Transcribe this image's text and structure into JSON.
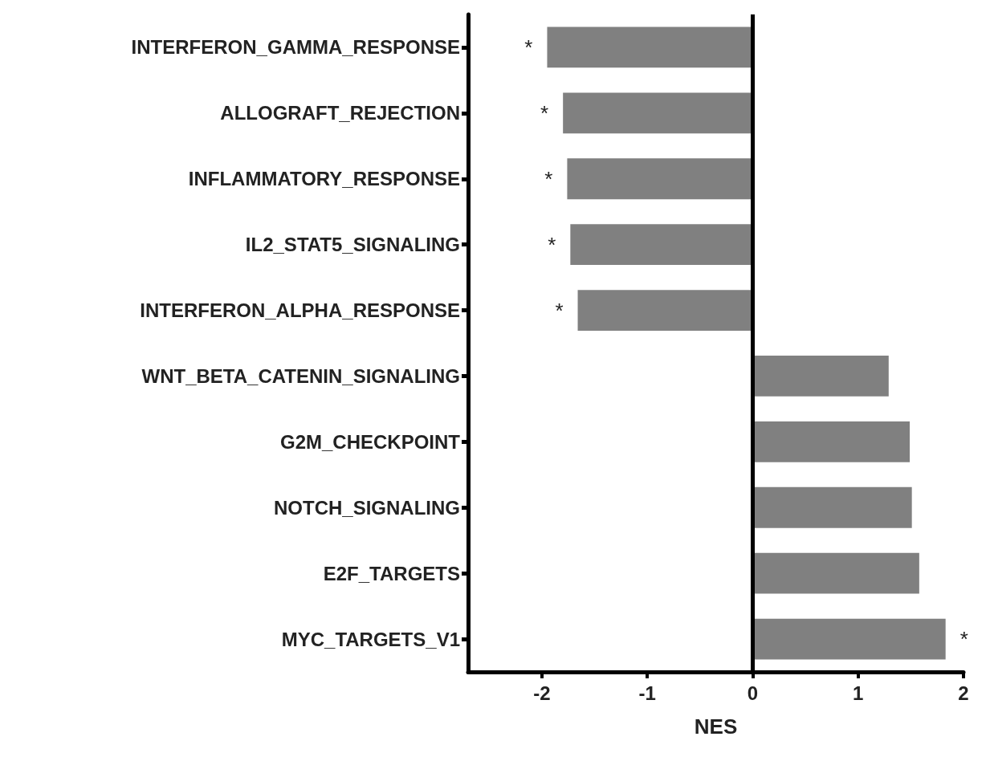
{
  "chart_data": {
    "type": "bar",
    "orientation": "horizontal",
    "xlabel": "NES",
    "categories": [
      "INTERFERON_GAMMA_RESPONSE",
      "ALLOGRAFT_REJECTION",
      "INFLAMMATORY_RESPONSE",
      "IL2_STAT5_SIGNALING",
      "INTERFERON_ALPHA_RESPONSE",
      "WNT_BETA_CATENIN_SIGNALING",
      "G2M_CHECKPOINT",
      "NOTCH_SIGNALING",
      "E2F_TARGETS",
      "MYC_TARGETS_V1"
    ],
    "values": [
      -1.95,
      -1.8,
      -1.76,
      -1.73,
      -1.66,
      1.29,
      1.49,
      1.51,
      1.58,
      1.83
    ],
    "color": "#808080",
    "xlim": [
      -2.7,
      2
    ],
    "xticks": [
      -2,
      -1,
      0,
      1,
      2
    ],
    "grid": false,
    "ref_lines": [
      {
        "axis": "x",
        "value": 0,
        "color": "#000000"
      }
    ],
    "value_labels": [
      "*",
      "*",
      "*",
      "*",
      "*",
      null,
      null,
      null,
      null,
      "*"
    ]
  }
}
